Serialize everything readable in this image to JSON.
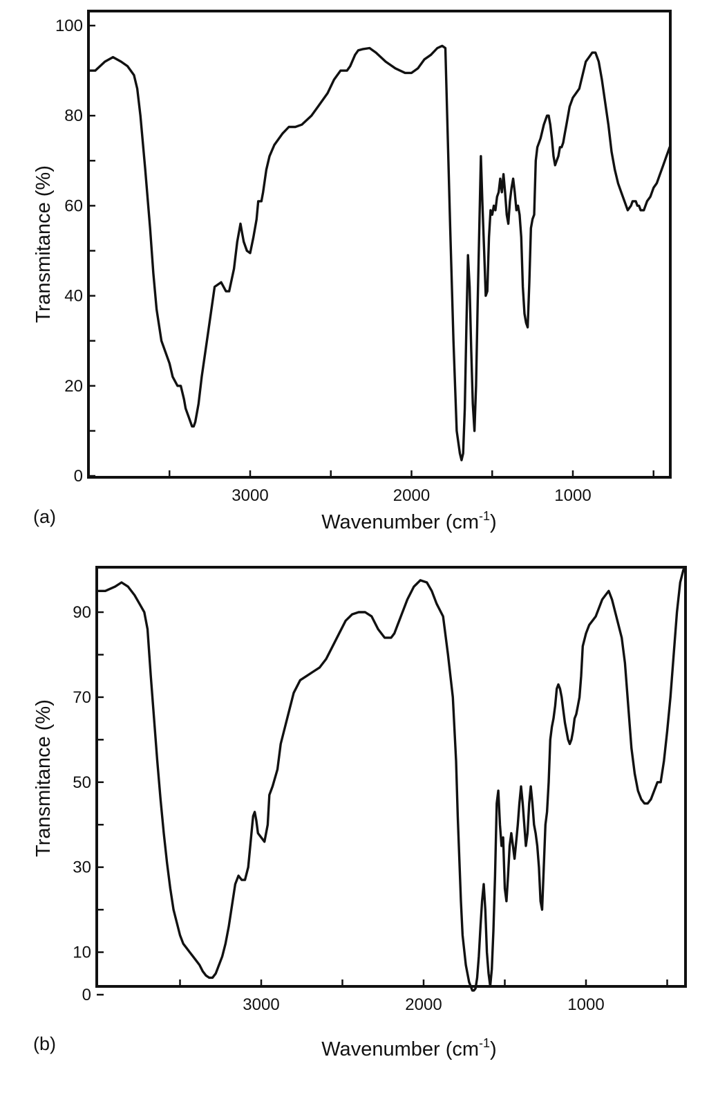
{
  "chart_data": [
    {
      "type": "line",
      "panel_label": "(a)",
      "xlabel": "Wavenumber (cm",
      "xlabel_sup": "-1",
      "xlabel_end": ")",
      "ylabel": "Transmitance (%)",
      "xlim": [
        4000,
        400
      ],
      "ylim": [
        0,
        100
      ],
      "x_ticks": [
        "3000",
        "2000",
        "1000"
      ],
      "y_ticks": [
        "0",
        "20",
        "40",
        "60",
        "80",
        "100"
      ],
      "series": [
        {
          "x": [
            4000,
            3960,
            3900,
            3850,
            3800,
            3760,
            3720,
            3700,
            3680,
            3650,
            3620,
            3600,
            3580,
            3550,
            3520,
            3500,
            3480,
            3450,
            3430,
            3410,
            3400,
            3380,
            3360,
            3350,
            3340,
            3320,
            3300,
            3260,
            3220,
            3180,
            3150,
            3130,
            3100,
            3080,
            3060,
            3050,
            3040,
            3020,
            3000,
            2980,
            2960,
            2950,
            2930,
            2920,
            2900,
            2880,
            2850,
            2800,
            2760,
            2720,
            2680,
            2620,
            2580,
            2520,
            2480,
            2440,
            2400,
            2380,
            2350,
            2330,
            2300,
            2260,
            2220,
            2160,
            2100,
            2040,
            2000,
            1960,
            1920,
            1880,
            1840,
            1810,
            1790,
            1775,
            1760,
            1740,
            1720,
            1700,
            1690,
            1680,
            1670,
            1660,
            1650,
            1640,
            1630,
            1620,
            1610,
            1600,
            1590,
            1580,
            1570,
            1560,
            1550,
            1540,
            1530,
            1520,
            1510,
            1500,
            1490,
            1480,
            1470,
            1460,
            1450,
            1440,
            1430,
            1420,
            1410,
            1400,
            1390,
            1380,
            1370,
            1360,
            1350,
            1340,
            1330,
            1320,
            1310,
            1300,
            1290,
            1280,
            1270,
            1260,
            1250,
            1240,
            1230,
            1220,
            1210,
            1200,
            1180,
            1160,
            1150,
            1140,
            1130,
            1120,
            1110,
            1100,
            1090,
            1080,
            1070,
            1060,
            1050,
            1040,
            1020,
            1000,
            980,
            960,
            940,
            920,
            900,
            880,
            860,
            840,
            820,
            800,
            780,
            760,
            740,
            720,
            700,
            680,
            660,
            640,
            630,
            620,
            610,
            600,
            590,
            580,
            560,
            540,
            520,
            500,
            480,
            460,
            440,
            420,
            400
          ],
          "y": [
            90,
            90,
            92,
            93,
            92,
            91,
            89,
            86,
            80,
            68,
            55,
            45,
            37,
            30,
            27,
            25,
            22,
            20,
            20,
            17,
            15,
            13,
            11,
            11,
            12,
            16,
            22,
            32,
            42,
            43,
            41,
            41,
            46,
            52,
            56,
            54,
            52,
            50,
            49.5,
            53,
            57,
            61,
            61,
            63,
            68,
            71,
            73.5,
            76,
            77.5,
            77.5,
            78,
            80,
            82,
            85,
            88,
            90,
            90,
            91,
            93.5,
            94.5,
            94.8,
            95,
            94,
            92,
            90.5,
            89.5,
            89.5,
            90.5,
            92.5,
            93.5,
            95,
            95.5,
            95,
            75,
            55,
            30,
            10,
            5,
            3.5,
            5,
            15,
            33,
            49,
            42,
            28,
            16,
            10,
            20,
            38,
            55,
            71,
            60,
            50,
            40,
            41,
            53,
            59,
            58,
            60,
            59,
            62,
            63,
            66,
            63,
            67,
            63,
            58,
            56,
            61,
            64,
            66,
            63,
            59,
            60,
            58,
            53,
            42,
            36,
            34,
            33,
            43,
            55,
            57,
            58,
            70,
            73,
            74,
            75,
            78,
            80,
            80,
            78,
            75,
            71,
            69,
            70,
            71,
            73,
            73,
            74,
            76,
            78,
            82,
            84,
            85,
            86,
            89,
            92,
            93,
            94,
            94,
            92,
            88,
            83,
            78,
            72,
            68,
            65,
            63,
            61,
            59,
            60,
            61,
            61,
            61,
            60,
            60,
            59,
            59,
            61,
            62,
            64,
            65,
            67,
            69,
            71,
            73
          ]
        }
      ]
    },
    {
      "type": "line",
      "panel_label": "(b)",
      "xlabel": "Wavenumber (cm",
      "xlabel_sup": "-1",
      "xlabel_end": ")",
      "ylabel": "Transmitance (%)",
      "xlim": [
        4000,
        400
      ],
      "ylim": [
        0,
        100
      ],
      "x_ticks": [
        "3000",
        "2000",
        "1000"
      ],
      "y_ticks": [
        "0",
        "10",
        "30",
        "50",
        "70",
        "90"
      ],
      "series": [
        {
          "x": [
            4000,
            3960,
            3900,
            3860,
            3820,
            3780,
            3750,
            3720,
            3700,
            3680,
            3660,
            3640,
            3620,
            3600,
            3580,
            3560,
            3540,
            3520,
            3500,
            3480,
            3460,
            3440,
            3420,
            3400,
            3380,
            3360,
            3340,
            3320,
            3300,
            3280,
            3260,
            3240,
            3220,
            3200,
            3180,
            3160,
            3140,
            3120,
            3100,
            3080,
            3060,
            3050,
            3040,
            3030,
            3020,
            3000,
            2980,
            2960,
            2950,
            2930,
            2900,
            2880,
            2860,
            2840,
            2800,
            2760,
            2720,
            2680,
            2640,
            2600,
            2560,
            2520,
            2480,
            2440,
            2400,
            2360,
            2320,
            2280,
            2240,
            2220,
            2200,
            2180,
            2160,
            2140,
            2100,
            2060,
            2020,
            1980,
            1950,
            1920,
            1880,
            1850,
            1820,
            1800,
            1790,
            1780,
            1770,
            1760,
            1740,
            1720,
            1700,
            1690,
            1680,
            1670,
            1660,
            1650,
            1640,
            1630,
            1620,
            1610,
            1600,
            1590,
            1580,
            1570,
            1560,
            1550,
            1540,
            1530,
            1520,
            1510,
            1500,
            1490,
            1480,
            1470,
            1460,
            1450,
            1440,
            1430,
            1420,
            1410,
            1400,
            1390,
            1380,
            1370,
            1360,
            1350,
            1340,
            1330,
            1320,
            1310,
            1300,
            1290,
            1280,
            1270,
            1260,
            1250,
            1240,
            1230,
            1220,
            1210,
            1200,
            1190,
            1180,
            1170,
            1160,
            1150,
            1140,
            1130,
            1120,
            1110,
            1100,
            1090,
            1080,
            1070,
            1060,
            1050,
            1040,
            1030,
            1020,
            1000,
            980,
            960,
            940,
            920,
            900,
            880,
            860,
            840,
            820,
            800,
            780,
            760,
            740,
            720,
            700,
            680,
            660,
            640,
            620,
            600,
            580,
            560,
            540,
            520,
            500,
            480,
            460,
            440,
            420,
            400
          ],
          "y": [
            95,
            95,
            96,
            97,
            96,
            94,
            92,
            90,
            86,
            75,
            65,
            55,
            46,
            38,
            31,
            25,
            20,
            17,
            14,
            12,
            11,
            10,
            9,
            8,
            7,
            5.5,
            4.5,
            4,
            4,
            5,
            7,
            9,
            12,
            16,
            21,
            26,
            28,
            27,
            27,
            30,
            38,
            42,
            43,
            41,
            38,
            37,
            36,
            40,
            47,
            49,
            53,
            59,
            62,
            65,
            71,
            74,
            75,
            76,
            77,
            79,
            82,
            85,
            88,
            89.5,
            90,
            90,
            89,
            86,
            84,
            84,
            84,
            85,
            87,
            89,
            93,
            96,
            97.5,
            97,
            95,
            92,
            89,
            80,
            70,
            55,
            42,
            32,
            22,
            14,
            7,
            3,
            1,
            1,
            1.5,
            4,
            9,
            16,
            22,
            26,
            20,
            10,
            5,
            2,
            6,
            15,
            28,
            45,
            48,
            40,
            35,
            37,
            25,
            22,
            28,
            35,
            38,
            35,
            32,
            36,
            40,
            45,
            49,
            45,
            40,
            35,
            38,
            45,
            49,
            45,
            40,
            38,
            35,
            30,
            22,
            20,
            30,
            40,
            43,
            50,
            60,
            63,
            65,
            68,
            72,
            73,
            72,
            70,
            67,
            64,
            62,
            60,
            59,
            60,
            62,
            65,
            66,
            68,
            70,
            75,
            82,
            85,
            87,
            88,
            89,
            91,
            93,
            94,
            95,
            93,
            90,
            87,
            84,
            78,
            68,
            58,
            52,
            48,
            46,
            45,
            45,
            46,
            48,
            50,
            50,
            55,
            62,
            70,
            80,
            90,
            97,
            100
          ]
        }
      ]
    }
  ]
}
